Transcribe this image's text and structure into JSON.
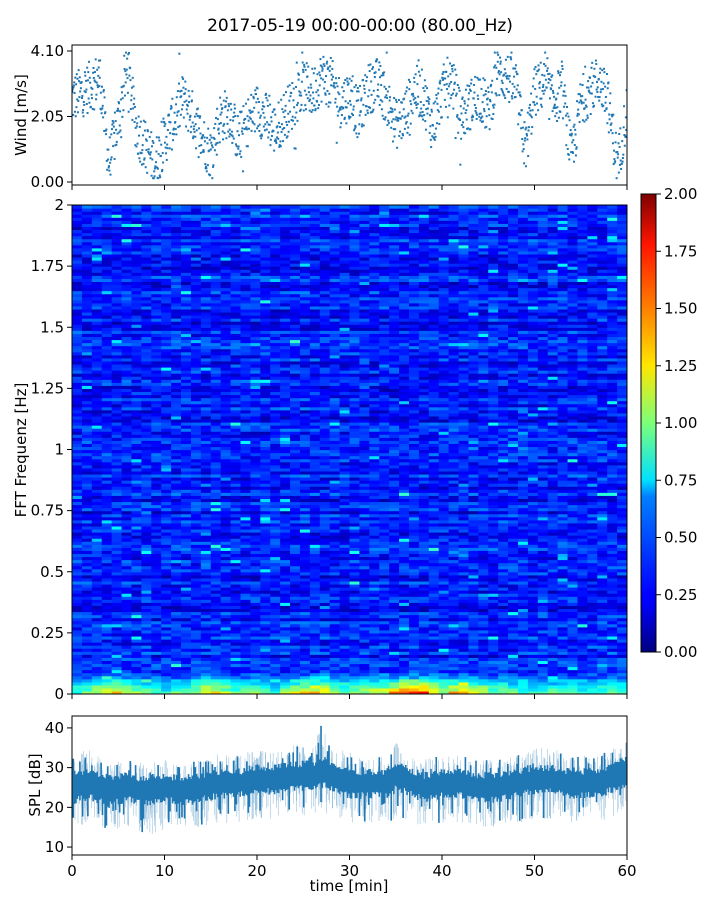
{
  "figure": {
    "title": "2017-05-19 00:00-00:00 (80.00_Hz)"
  },
  "chart_data": [
    {
      "type": "scatter",
      "ylabel": "Wind [m/s]",
      "xlim": [
        0,
        60
      ],
      "ylim": [
        0,
        4.1
      ],
      "yticks": [
        "0.00",
        "2.05",
        "4.10"
      ],
      "marker_color": "#1f77b4",
      "series": [
        {
          "x": [
            0,
            1,
            2,
            3,
            4,
            5,
            6,
            7,
            8,
            9,
            10,
            11,
            12,
            13,
            14,
            15,
            16,
            17,
            18,
            19,
            20,
            21,
            22,
            23,
            24,
            25,
            26,
            27,
            28,
            29,
            30,
            31,
            32,
            33,
            34,
            35,
            36,
            37,
            38,
            39,
            40,
            41,
            42,
            43,
            44,
            45,
            46,
            47,
            48,
            49,
            50,
            51,
            52,
            53,
            54,
            55,
            56,
            57,
            58,
            59,
            60
          ],
          "y": [
            2.6,
            2.8,
            3.0,
            3.3,
            0.6,
            1.9,
            3.6,
            1.6,
            1.1,
            0.6,
            1.3,
            1.9,
            2.6,
            2.1,
            1.4,
            0.9,
            2.0,
            2.2,
            1.3,
            1.9,
            2.3,
            2.0,
            1.6,
            2.1,
            2.5,
            3.0,
            2.8,
            3.3,
            3.1,
            2.5,
            2.7,
            2.1,
            2.9,
            3.1,
            2.6,
            1.8,
            2.1,
            2.9,
            2.7,
            1.7,
            2.8,
            3.3,
            2.0,
            2.4,
            2.8,
            2.2,
            3.4,
            3.3,
            2.9,
            1.0,
            2.8,
            3.1,
            2.5,
            2.9,
            0.7,
            2.5,
            2.9,
            3.2,
            2.4,
            0.5,
            2.3
          ]
        }
      ]
    },
    {
      "type": "heatmap",
      "ylabel": "FFT Frequenz [Hz]",
      "xlim": [
        0,
        60
      ],
      "ylim": [
        0,
        2
      ],
      "yticks": [
        "0",
        "0.25",
        "0.5",
        "0.75",
        "1",
        "1.25",
        "1.5",
        "1.75",
        "2"
      ],
      "colorscale": "jet",
      "colorbar": {
        "range": [
          0,
          2
        ],
        "ticks": [
          "0.00",
          "0.25",
          "0.50",
          "0.75",
          "1.00",
          "1.25",
          "1.50",
          "1.75",
          "2.00"
        ]
      },
      "typical_value_above_0_1_hz": 0.3,
      "low_frequency_band": {
        "freq_max_hz": 0.1,
        "x_min": [
          0,
          2,
          5,
          7,
          10,
          13,
          15,
          18,
          20,
          22,
          24,
          26,
          28,
          30,
          32,
          34,
          36,
          38,
          40,
          42,
          44,
          46,
          48,
          50,
          52,
          54,
          56,
          58
        ],
        "peak_value": [
          1.0,
          1.2,
          1.6,
          1.2,
          1.0,
          1.3,
          1.6,
          1.1,
          1.2,
          1.0,
          1.4,
          1.6,
          1.5,
          1.1,
          1.3,
          1.5,
          1.9,
          1.9,
          1.3,
          1.8,
          1.4,
          1.2,
          1.1,
          1.0,
          1.1,
          1.0,
          1.0,
          1.1
        ]
      }
    },
    {
      "type": "area",
      "ylabel": "SPL [dB]",
      "xlabel": "time [min]",
      "xlim": [
        0,
        60
      ],
      "ylim": [
        8,
        43
      ],
      "yticks": [
        "10",
        "20",
        "30",
        "40"
      ],
      "xticks": [
        "0",
        "10",
        "20",
        "30",
        "40",
        "50",
        "60"
      ],
      "fill_color": "#1f77b4",
      "series": [
        {
          "x": [
            0,
            2,
            4,
            6,
            8,
            10,
            12,
            14,
            16,
            18,
            20,
            22,
            24,
            26,
            27,
            28,
            30,
            32,
            34,
            35,
            36,
            38,
            40,
            42,
            44,
            46,
            48,
            50,
            52,
            54,
            56,
            58,
            60
          ],
          "mean": [
            25,
            26,
            24,
            25,
            24,
            25,
            24,
            25,
            26,
            26,
            27,
            27,
            28,
            28,
            29,
            28,
            26,
            26,
            26,
            28,
            27,
            25,
            26,
            26,
            25,
            25,
            26,
            27,
            27,
            26,
            26,
            27,
            29
          ],
          "spread": [
            4,
            4,
            4,
            3.5,
            3.5,
            3.5,
            3.5,
            3.5,
            3.5,
            3.5,
            3.5,
            3.5,
            3.5,
            3.5,
            4,
            3.5,
            3.5,
            3.5,
            3.5,
            4,
            3.5,
            3.5,
            3.5,
            3.5,
            3.5,
            3.5,
            3.5,
            3.5,
            3.5,
            3.5,
            3.5,
            3.5,
            4
          ],
          "max": [
            33,
            35,
            31,
            32,
            31,
            32,
            31,
            32,
            34,
            33,
            35,
            34,
            36,
            35,
            41,
            35,
            34,
            33,
            33,
            38,
            34,
            32,
            33,
            33,
            32,
            32,
            33,
            35,
            35,
            33,
            33,
            34,
            37
          ],
          "min": [
            15,
            16,
            14,
            15,
            13,
            14,
            14,
            15,
            16,
            16,
            17,
            17,
            18,
            18,
            19,
            18,
            16,
            16,
            16,
            17,
            17,
            15,
            16,
            16,
            15,
            15,
            16,
            17,
            17,
            16,
            16,
            17,
            19
          ]
        }
      ]
    }
  ]
}
